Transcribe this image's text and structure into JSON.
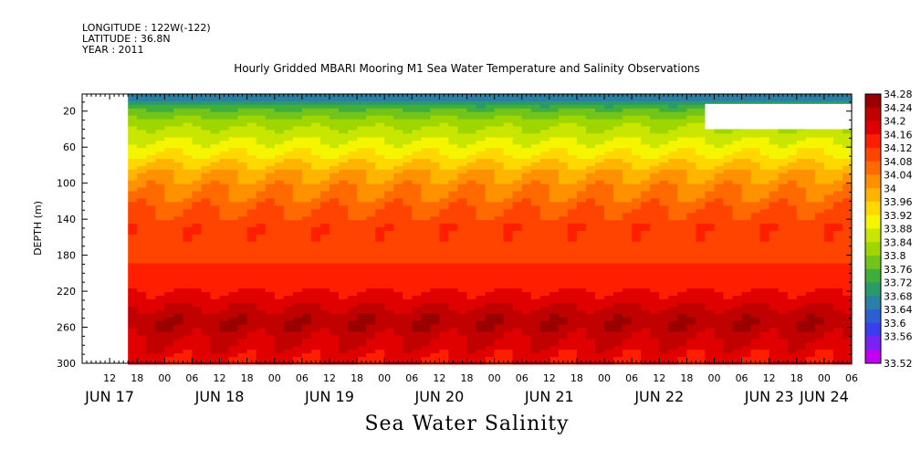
{
  "header": {
    "longitude": "LONGITUDE : 122W(-122)",
    "latitude": "LATITUDE : 36.8N",
    "year": "YEAR : 2011"
  },
  "chart_data": {
    "type": "heatmap",
    "title": "Hourly Gridded MBARI Mooring M1 Sea Water Temperature and Salinity Observations",
    "xlabel": "Sea Water Salinity",
    "ylabel": "DEPTH (m)",
    "x_range_hours_from_jun17_00": [
      6,
      174
    ],
    "data_start_hour": 16,
    "ylim": [
      300,
      1
    ],
    "y_ticks": [
      20,
      60,
      100,
      140,
      180,
      220,
      260,
      300
    ],
    "x_hour_labels": [
      "12",
      "18",
      "00",
      "06",
      "12",
      "18",
      "00",
      "06",
      "12",
      "18",
      "00",
      "06",
      "12",
      "18",
      "00",
      "06",
      "12",
      "18",
      "00",
      "06",
      "12",
      "18",
      "00",
      "06",
      "12",
      "18",
      "00",
      "06"
    ],
    "x_day_labels": [
      "JUN 17",
      "JUN 18",
      "JUN 19",
      "JUN 20",
      "JUN 21",
      "JUN 22",
      "JUN 23",
      "JUN 24"
    ],
    "colorbar_levels": [
      34.28,
      34.24,
      34.2,
      34.16,
      34.12,
      34.08,
      34.04,
      34,
      33.96,
      33.92,
      33.88,
      33.84,
      33.8,
      33.76,
      33.72,
      33.68,
      33.64,
      33.6,
      33.56,
      33.52
    ],
    "colorbar_colors": [
      "#9a0000",
      "#c10000",
      "#e00000",
      "#ff1e00",
      "#ff4400",
      "#ff6a00",
      "#ff9000",
      "#ffb400",
      "#ffd800",
      "#f5f500",
      "#c8e600",
      "#9fd600",
      "#72c41a",
      "#3fae3a",
      "#2a9a6a",
      "#2a7fa6",
      "#2c5fd2",
      "#3d3df0",
      "#7a22f2",
      "#c400f2"
    ],
    "profile_depths": [
      1,
      10,
      20,
      35,
      50,
      70,
      90,
      110,
      130,
      150,
      170,
      190,
      210,
      230,
      245,
      255,
      265,
      280,
      300
    ],
    "mean_profile": [
      33.64,
      33.68,
      33.77,
      33.83,
      33.87,
      33.93,
      34.0,
      34.04,
      34.08,
      34.11,
      34.11,
      34.12,
      34.14,
      34.18,
      34.22,
      34.23,
      34.22,
      34.19,
      34.16
    ],
    "masked_region": {
      "hours": [
        142,
        174
      ],
      "depth": [
        12,
        40
      ]
    }
  }
}
